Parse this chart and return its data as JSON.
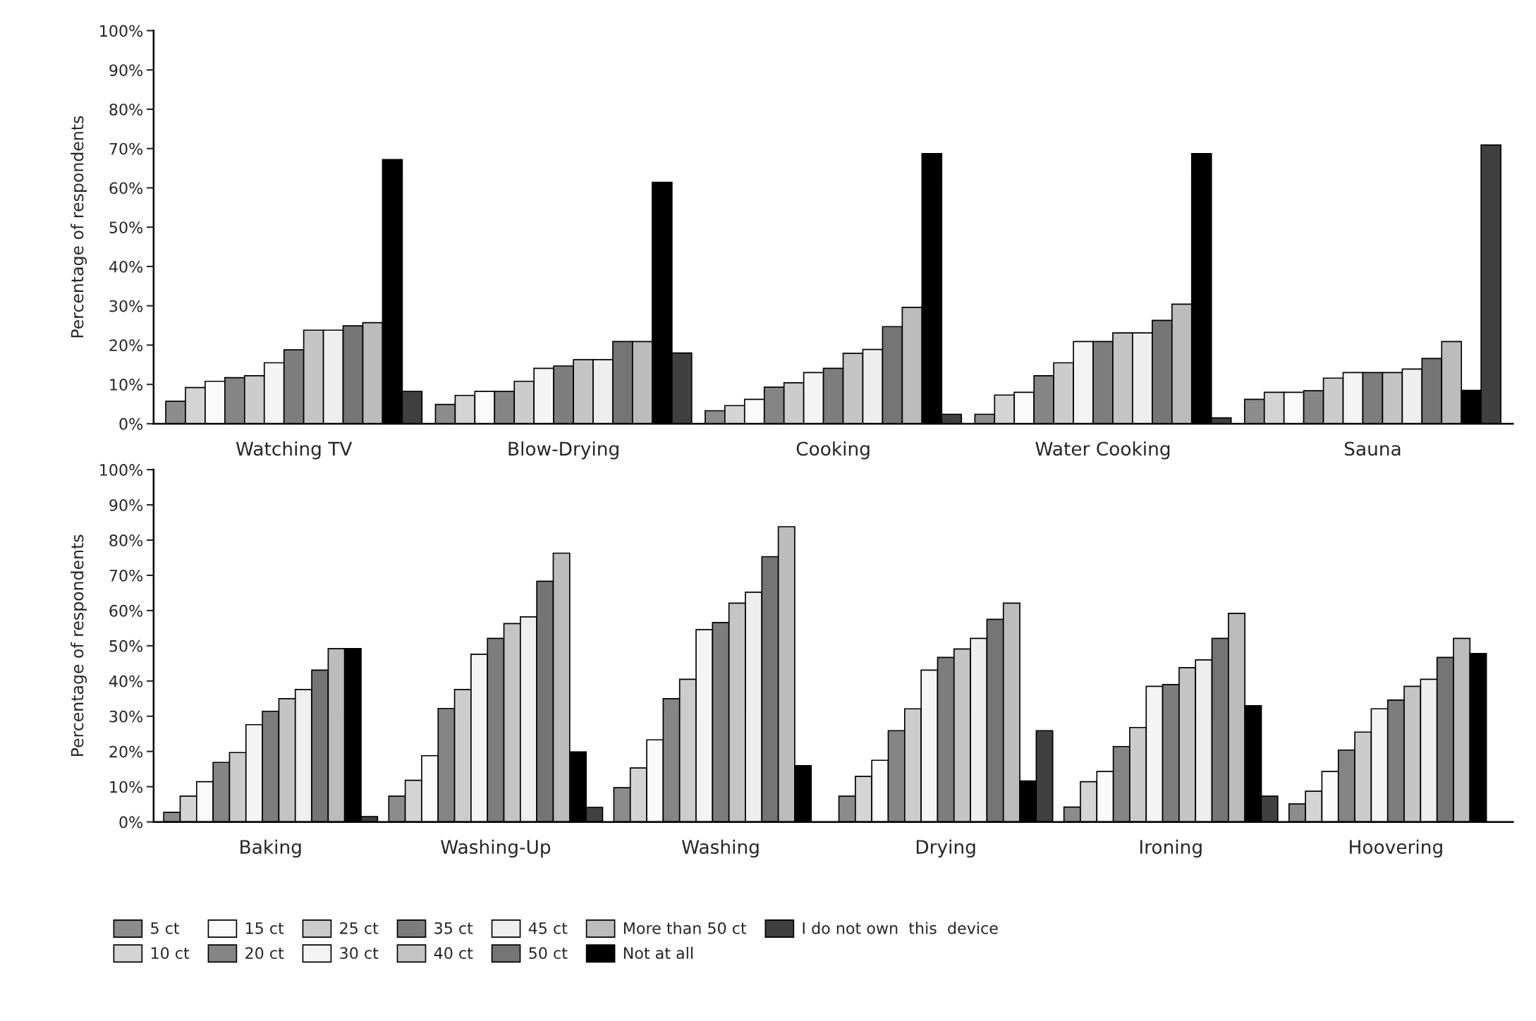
{
  "chart_data": [
    {
      "type": "bar",
      "ylabel": "Percentage of respondents",
      "categories": [
        "Watching TV",
        "Blow-Drying",
        "Cooking",
        "Water Cooking",
        "Sauna"
      ],
      "ylim": [
        0,
        100
      ],
      "yticks": [
        {
          "value": 0,
          "label": "0%"
        },
        {
          "value": 10,
          "label": "10%"
        },
        {
          "value": 20,
          "label": "20%"
        },
        {
          "value": 30,
          "label": "30%"
        },
        {
          "value": 40,
          "label": "40%"
        },
        {
          "value": 50,
          "label": "50%"
        },
        {
          "value": 60,
          "label": "60%"
        },
        {
          "value": 70,
          "label": "70%"
        },
        {
          "value": 80,
          "label": "80%"
        },
        {
          "value": 90,
          "label": "90%"
        },
        {
          "value": 100,
          "label": "100%"
        }
      ],
      "grid": false,
      "legend": "bottom",
      "series": [
        {
          "name": "5 ct",
          "color": "#8c8c8c",
          "values": [
            5.7,
            4.9,
            3.3,
            2.4,
            6.2
          ]
        },
        {
          "name": "10 ct",
          "color": "#d4d4d4",
          "values": [
            9.2,
            7.2,
            4.6,
            7.3,
            8.0
          ]
        },
        {
          "name": "15 ct",
          "color": "#fafafa",
          "values": [
            10.8,
            8.2,
            6.2,
            8.0,
            8.0
          ]
        },
        {
          "name": "20 ct",
          "color": "#858585",
          "values": [
            11.7,
            8.2,
            9.3,
            12.2,
            8.4
          ]
        },
        {
          "name": "25 ct",
          "color": "#cccccc",
          "values": [
            12.2,
            10.8,
            10.4,
            15.5,
            11.6
          ]
        },
        {
          "name": "30 ct",
          "color": "#f4f4f4",
          "values": [
            15.5,
            14.1,
            13.0,
            20.9,
            13.0
          ]
        },
        {
          "name": "35 ct",
          "color": "#7d7d7d",
          "values": [
            18.8,
            14.7,
            14.1,
            20.9,
            13.0
          ]
        },
        {
          "name": "40 ct",
          "color": "#c4c4c4",
          "values": [
            23.8,
            16.3,
            17.9,
            23.1,
            13.0
          ]
        },
        {
          "name": "45 ct",
          "color": "#eeeeee",
          "values": [
            23.8,
            16.3,
            18.9,
            23.1,
            13.9
          ]
        },
        {
          "name": "50 ct",
          "color": "#757575",
          "values": [
            24.9,
            20.9,
            24.7,
            26.3,
            16.6
          ]
        },
        {
          "name": "More than 50 ct",
          "color": "#bcbcbc",
          "values": [
            25.7,
            20.9,
            29.6,
            30.4,
            20.9
          ]
        },
        {
          "name": "Not at all",
          "color": "#000000",
          "values": [
            67.2,
            61.4,
            68.7,
            68.7,
            8.5
          ]
        },
        {
          "name": "I do not own  this  device",
          "color": "#404040",
          "values": [
            8.2,
            18.0,
            2.4,
            1.5,
            70.9
          ]
        }
      ]
    },
    {
      "type": "bar",
      "ylabel": "Percentage of respondents",
      "categories": [
        "Baking",
        "Washing-Up",
        "Washing",
        "Drying",
        "Ironing",
        "Hoovering"
      ],
      "ylim": [
        0,
        100
      ],
      "yticks": [
        {
          "value": 0,
          "label": "0%"
        },
        {
          "value": 10,
          "label": "10%"
        },
        {
          "value": 20,
          "label": "20%"
        },
        {
          "value": 30,
          "label": "30%"
        },
        {
          "value": 40,
          "label": "40%"
        },
        {
          "value": 50,
          "label": "50%"
        },
        {
          "value": 60,
          "label": "60%"
        },
        {
          "value": 70,
          "label": "70%"
        },
        {
          "value": 80,
          "label": "80%"
        },
        {
          "value": 90,
          "label": "90%"
        },
        {
          "value": 100,
          "label": "100%"
        }
      ],
      "grid": false,
      "series": [
        {
          "color": "#8c8c8c",
          "values": [
            2.7,
            7.3,
            9.7,
            7.3,
            4.2,
            5.1
          ]
        },
        {
          "color": "#d4d4d4",
          "values": [
            7.3,
            11.8,
            15.3,
            12.9,
            11.4,
            8.7
          ]
        },
        {
          "color": "#fafafa",
          "values": [
            11.4,
            18.8,
            23.3,
            17.5,
            14.3,
            14.3
          ]
        },
        {
          "color": "#858585",
          "values": [
            16.9,
            32.2,
            35.0,
            25.9,
            21.4,
            20.4
          ]
        },
        {
          "color": "#cccccc",
          "values": [
            19.7,
            37.6,
            40.5,
            32.1,
            26.8,
            25.5
          ]
        },
        {
          "color": "#f4f4f4",
          "values": [
            27.6,
            47.6,
            54.6,
            43.1,
            38.5,
            32.1
          ]
        },
        {
          "color": "#7d7d7d",
          "values": [
            31.4,
            52.1,
            56.6,
            46.7,
            39.0,
            34.6
          ]
        },
        {
          "color": "#c4c4c4",
          "values": [
            35.0,
            56.3,
            62.1,
            49.1,
            43.8,
            38.5
          ]
        },
        {
          "color": "#eeeeee",
          "values": [
            37.6,
            58.2,
            65.2,
            52.1,
            46.0,
            40.5
          ]
        },
        {
          "color": "#757575",
          "values": [
            43.1,
            68.3,
            75.3,
            57.5,
            52.1,
            46.7
          ]
        },
        {
          "color": "#bcbcbc",
          "values": [
            49.2,
            76.3,
            83.8,
            62.1,
            59.2,
            52.1
          ]
        },
        {
          "color": "#000000",
          "values": [
            49.2,
            19.9,
            16.0,
            11.6,
            33.0,
            47.8
          ]
        },
        {
          "color": "#404040",
          "values": [
            1.5,
            4.1,
            null,
            25.9,
            7.3,
            null
          ]
        }
      ]
    }
  ]
}
